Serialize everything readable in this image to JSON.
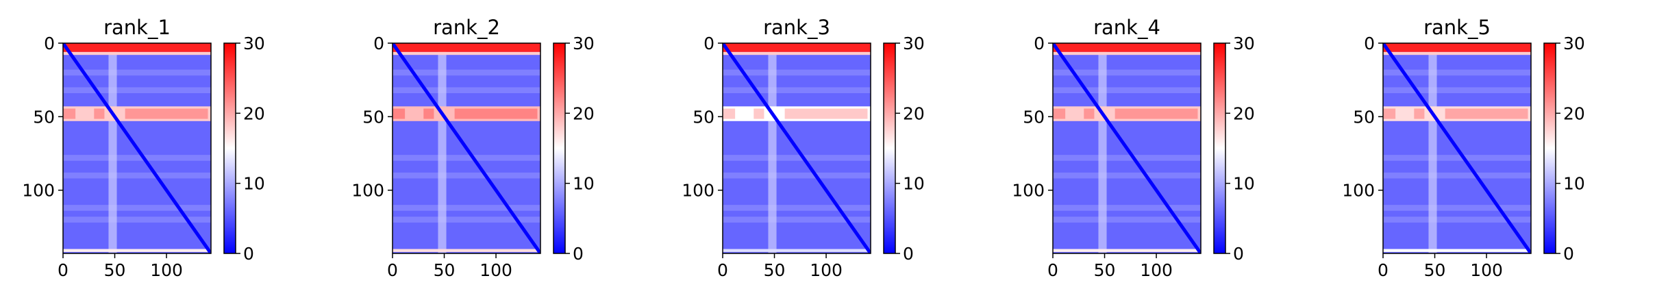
{
  "chart_data": [
    {
      "type": "heatmap",
      "title": "rank_1",
      "x_ticks": [
        "0",
        "50",
        "100"
      ],
      "y_ticks": [
        "0",
        "50",
        "100"
      ],
      "x_tick_values": [
        0,
        50,
        100
      ],
      "y_tick_values": [
        0,
        50,
        100
      ],
      "xlim": [
        0,
        143
      ],
      "ylim": [
        0,
        143
      ],
      "colorbar": {
        "ticks": [
          "0",
          "10",
          "20",
          "30"
        ],
        "tick_values": [
          0,
          10,
          20,
          30
        ],
        "range": [
          0,
          30
        ]
      },
      "colormap": [
        "#0000ff",
        "#ffffff",
        "#ff0000"
      ],
      "bands": {
        "top_rows_value": 28,
        "row_50_value": 22,
        "column_50_value": 12,
        "background_value": 6,
        "diagonal_value": 0
      }
    },
    {
      "type": "heatmap",
      "title": "rank_2",
      "x_ticks": [
        "0",
        "50",
        "100"
      ],
      "y_ticks": [
        "0",
        "50",
        "100"
      ],
      "x_tick_values": [
        0,
        50,
        100
      ],
      "y_tick_values": [
        0,
        50,
        100
      ],
      "xlim": [
        0,
        143
      ],
      "ylim": [
        0,
        143
      ],
      "colorbar": {
        "ticks": [
          "0",
          "10",
          "20",
          "30"
        ],
        "tick_values": [
          0,
          10,
          20,
          30
        ],
        "range": [
          0,
          30
        ]
      },
      "colormap": [
        "#0000ff",
        "#ffffff",
        "#ff0000"
      ],
      "bands": {
        "top_rows_value": 28,
        "row_50_value": 23,
        "column_50_value": 12,
        "background_value": 6,
        "diagonal_value": 0
      }
    },
    {
      "type": "heatmap",
      "title": "rank_3",
      "x_ticks": [
        "0",
        "50",
        "100"
      ],
      "y_ticks": [
        "0",
        "50",
        "100"
      ],
      "x_tick_values": [
        0,
        50,
        100
      ],
      "y_tick_values": [
        0,
        50,
        100
      ],
      "xlim": [
        0,
        143
      ],
      "ylim": [
        0,
        143
      ],
      "colorbar": {
        "ticks": [
          "0",
          "10",
          "20",
          "30"
        ],
        "tick_values": [
          0,
          10,
          20,
          30
        ],
        "range": [
          0,
          30
        ]
      },
      "colormap": [
        "#0000ff",
        "#ffffff",
        "#ff0000"
      ],
      "bands": {
        "top_rows_value": 28,
        "row_50_value": 19,
        "column_50_value": 12,
        "background_value": 6,
        "diagonal_value": 0
      }
    },
    {
      "type": "heatmap",
      "title": "rank_4",
      "x_ticks": [
        "0",
        "50",
        "100"
      ],
      "y_ticks": [
        "0",
        "50",
        "100"
      ],
      "x_tick_values": [
        0,
        50,
        100
      ],
      "y_tick_values": [
        0,
        50,
        100
      ],
      "xlim": [
        0,
        143
      ],
      "ylim": [
        0,
        143
      ],
      "colorbar": {
        "ticks": [
          "0",
          "10",
          "20",
          "30"
        ],
        "tick_values": [
          0,
          10,
          20,
          30
        ],
        "range": [
          0,
          30
        ]
      },
      "colormap": [
        "#0000ff",
        "#ffffff",
        "#ff0000"
      ],
      "bands": {
        "top_rows_value": 28,
        "row_50_value": 22,
        "column_50_value": 12,
        "background_value": 6,
        "diagonal_value": 0
      }
    },
    {
      "type": "heatmap",
      "title": "rank_5",
      "x_ticks": [
        "0",
        "50",
        "100"
      ],
      "y_ticks": [
        "0",
        "50",
        "100"
      ],
      "x_tick_values": [
        0,
        50,
        100
      ],
      "y_tick_values": [
        0,
        50,
        100
      ],
      "xlim": [
        0,
        143
      ],
      "ylim": [
        0,
        143
      ],
      "colorbar": {
        "ticks": [
          "0",
          "10",
          "20",
          "30"
        ],
        "tick_values": [
          0,
          10,
          20,
          30
        ],
        "range": [
          0,
          30
        ]
      },
      "colormap": [
        "#0000ff",
        "#ffffff",
        "#ff0000"
      ],
      "bands": {
        "top_rows_value": 28,
        "row_50_value": 21,
        "column_50_value": 12,
        "background_value": 6,
        "diagonal_value": 0
      }
    }
  ]
}
